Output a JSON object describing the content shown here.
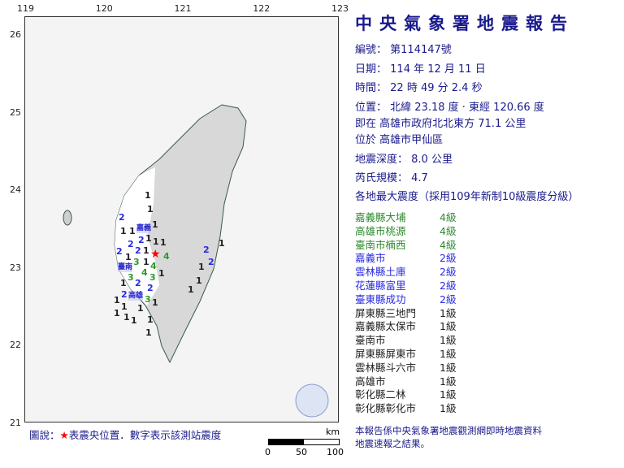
{
  "report": {
    "title": "中央氣象署地震報告",
    "number_label": "編號：",
    "number": "第114147號",
    "date_label": "日期：",
    "date": "114 年 12 月 11 日",
    "time_label": "時間：",
    "time": "22 時 49 分 2.4 秒",
    "location_label": "位置：",
    "location": "北緯 23.18 度 · 東經 120.66 度",
    "relative": "即在 高雄市政府北北東方 71.1 公里",
    "district": "位於 高雄市甲仙區",
    "depth_label": "地震深度：",
    "depth": "8.0 公里",
    "magnitude_label": "芮氏規模：",
    "magnitude": "4.7",
    "intensity_header": "各地最大震度（採用109年新制10級震度分級）"
  },
  "intensities": [
    {
      "place": "嘉義縣大埔",
      "level": "4級",
      "color": "#2e8b2e"
    },
    {
      "place": "高雄市桃源",
      "level": "4級",
      "color": "#2e8b2e"
    },
    {
      "place": "臺南市楠西",
      "level": "4級",
      "color": "#2e8b2e"
    },
    {
      "place": "嘉義市",
      "level": "2級",
      "color": "#2a2ae0"
    },
    {
      "place": "雲林縣土庫",
      "level": "2級",
      "color": "#2a2ae0"
    },
    {
      "place": "花蓮縣富里",
      "level": "2級",
      "color": "#2a2ae0"
    },
    {
      "place": "臺東縣成功",
      "level": "2級",
      "color": "#2a2ae0"
    },
    {
      "place": "屏東縣三地門",
      "level": "1級",
      "color": "#222222"
    },
    {
      "place": "嘉義縣太保市",
      "level": "1級",
      "color": "#222222"
    },
    {
      "place": "臺南市",
      "level": "1級",
      "color": "#222222"
    },
    {
      "place": "屏東縣屏東市",
      "level": "1級",
      "color": "#222222"
    },
    {
      "place": "雲林縣斗六市",
      "level": "1級",
      "color": "#222222"
    },
    {
      "place": "高雄市",
      "level": "1級",
      "color": "#222222"
    },
    {
      "place": "彰化縣二林",
      "level": "1級",
      "color": "#222222"
    },
    {
      "place": "彰化縣彰化市",
      "level": "1級",
      "color": "#222222"
    }
  ],
  "footer": [
    "本報告係中央氣象署地震觀測網即時地震資料",
    "地震速報之結果。"
  ],
  "legend": {
    "label": "圖說：",
    "star": "★",
    "text": "表震央位置．數字表示該測站震度",
    "star_color": "#ff0000"
  },
  "scale": {
    "unit": "km",
    "ticks": [
      "0",
      "50",
      "100"
    ]
  },
  "map": {
    "lon_ticks": [
      "119",
      "120",
      "121",
      "122",
      "123"
    ],
    "lat_ticks": [
      "26",
      "25",
      "24",
      "23",
      "22",
      "21"
    ],
    "epicenter": {
      "lat": 23.18,
      "lon": 120.66
    },
    "cities": [
      "嘉義",
      "臺南",
      "高雄"
    ],
    "stations": [
      "1",
      "1",
      "1",
      "2",
      "1",
      "1",
      "2",
      "1",
      "1",
      "2",
      "1",
      "1",
      "2",
      "2",
      "1",
      "1",
      "3",
      "3",
      "4",
      "4",
      "4",
      "1",
      "2",
      "2",
      "1",
      "1",
      "3",
      "2",
      "1",
      "1",
      "3",
      "1",
      "1",
      "1",
      "1",
      "1",
      "1",
      "2",
      "2",
      "1",
      "1",
      "1",
      "1"
    ]
  }
}
